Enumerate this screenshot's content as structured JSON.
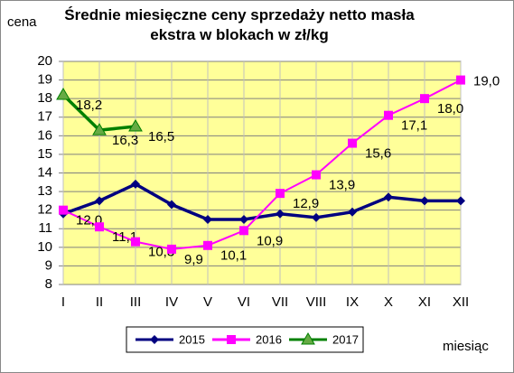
{
  "chart_data": {
    "type": "line",
    "title": "Średnie miesięczne ceny sprzedaży netto masła ekstra w blokach w zł/kg",
    "y_label": "cena",
    "x_label": "miesiąc",
    "categories": [
      "I",
      "II",
      "III",
      "IV",
      "V",
      "VI",
      "VII",
      "VIII",
      "IX",
      "X",
      "XI",
      "XII"
    ],
    "series": [
      {
        "name": "2015",
        "color": "#000080",
        "marker": "diamond",
        "values": [
          11.8,
          12.5,
          13.4,
          12.3,
          11.5,
          11.5,
          11.8,
          11.6,
          11.9,
          12.7,
          12.5,
          12.5
        ]
      },
      {
        "name": "2016",
        "color": "#ff00ff",
        "marker": "square",
        "values": [
          12.0,
          11.1,
          10.3,
          9.9,
          10.1,
          10.9,
          12.9,
          13.9,
          15.6,
          17.1,
          18.0,
          19.0
        ],
        "value_labels": [
          "12,0",
          "11,1",
          "10,3",
          "9,9",
          "10,1",
          "10,9",
          "12,9",
          "13,9",
          "15,6",
          "17,1",
          "18,0",
          "19,0"
        ]
      },
      {
        "name": "2017",
        "color": "#008000",
        "marker": "triangle",
        "values": [
          18.2,
          16.3,
          16.5,
          null,
          null,
          null,
          null,
          null,
          null,
          null,
          null,
          null
        ],
        "value_labels": [
          "18,2",
          "16,3",
          "16,5",
          null,
          null,
          null,
          null,
          null,
          null,
          null,
          null,
          null
        ]
      }
    ],
    "ylim": [
      8,
      20
    ],
    "yticks": [
      8,
      9,
      10,
      11,
      12,
      13,
      14,
      15,
      16,
      17,
      18,
      19,
      20
    ],
    "grid": true,
    "legend": "bottom"
  }
}
